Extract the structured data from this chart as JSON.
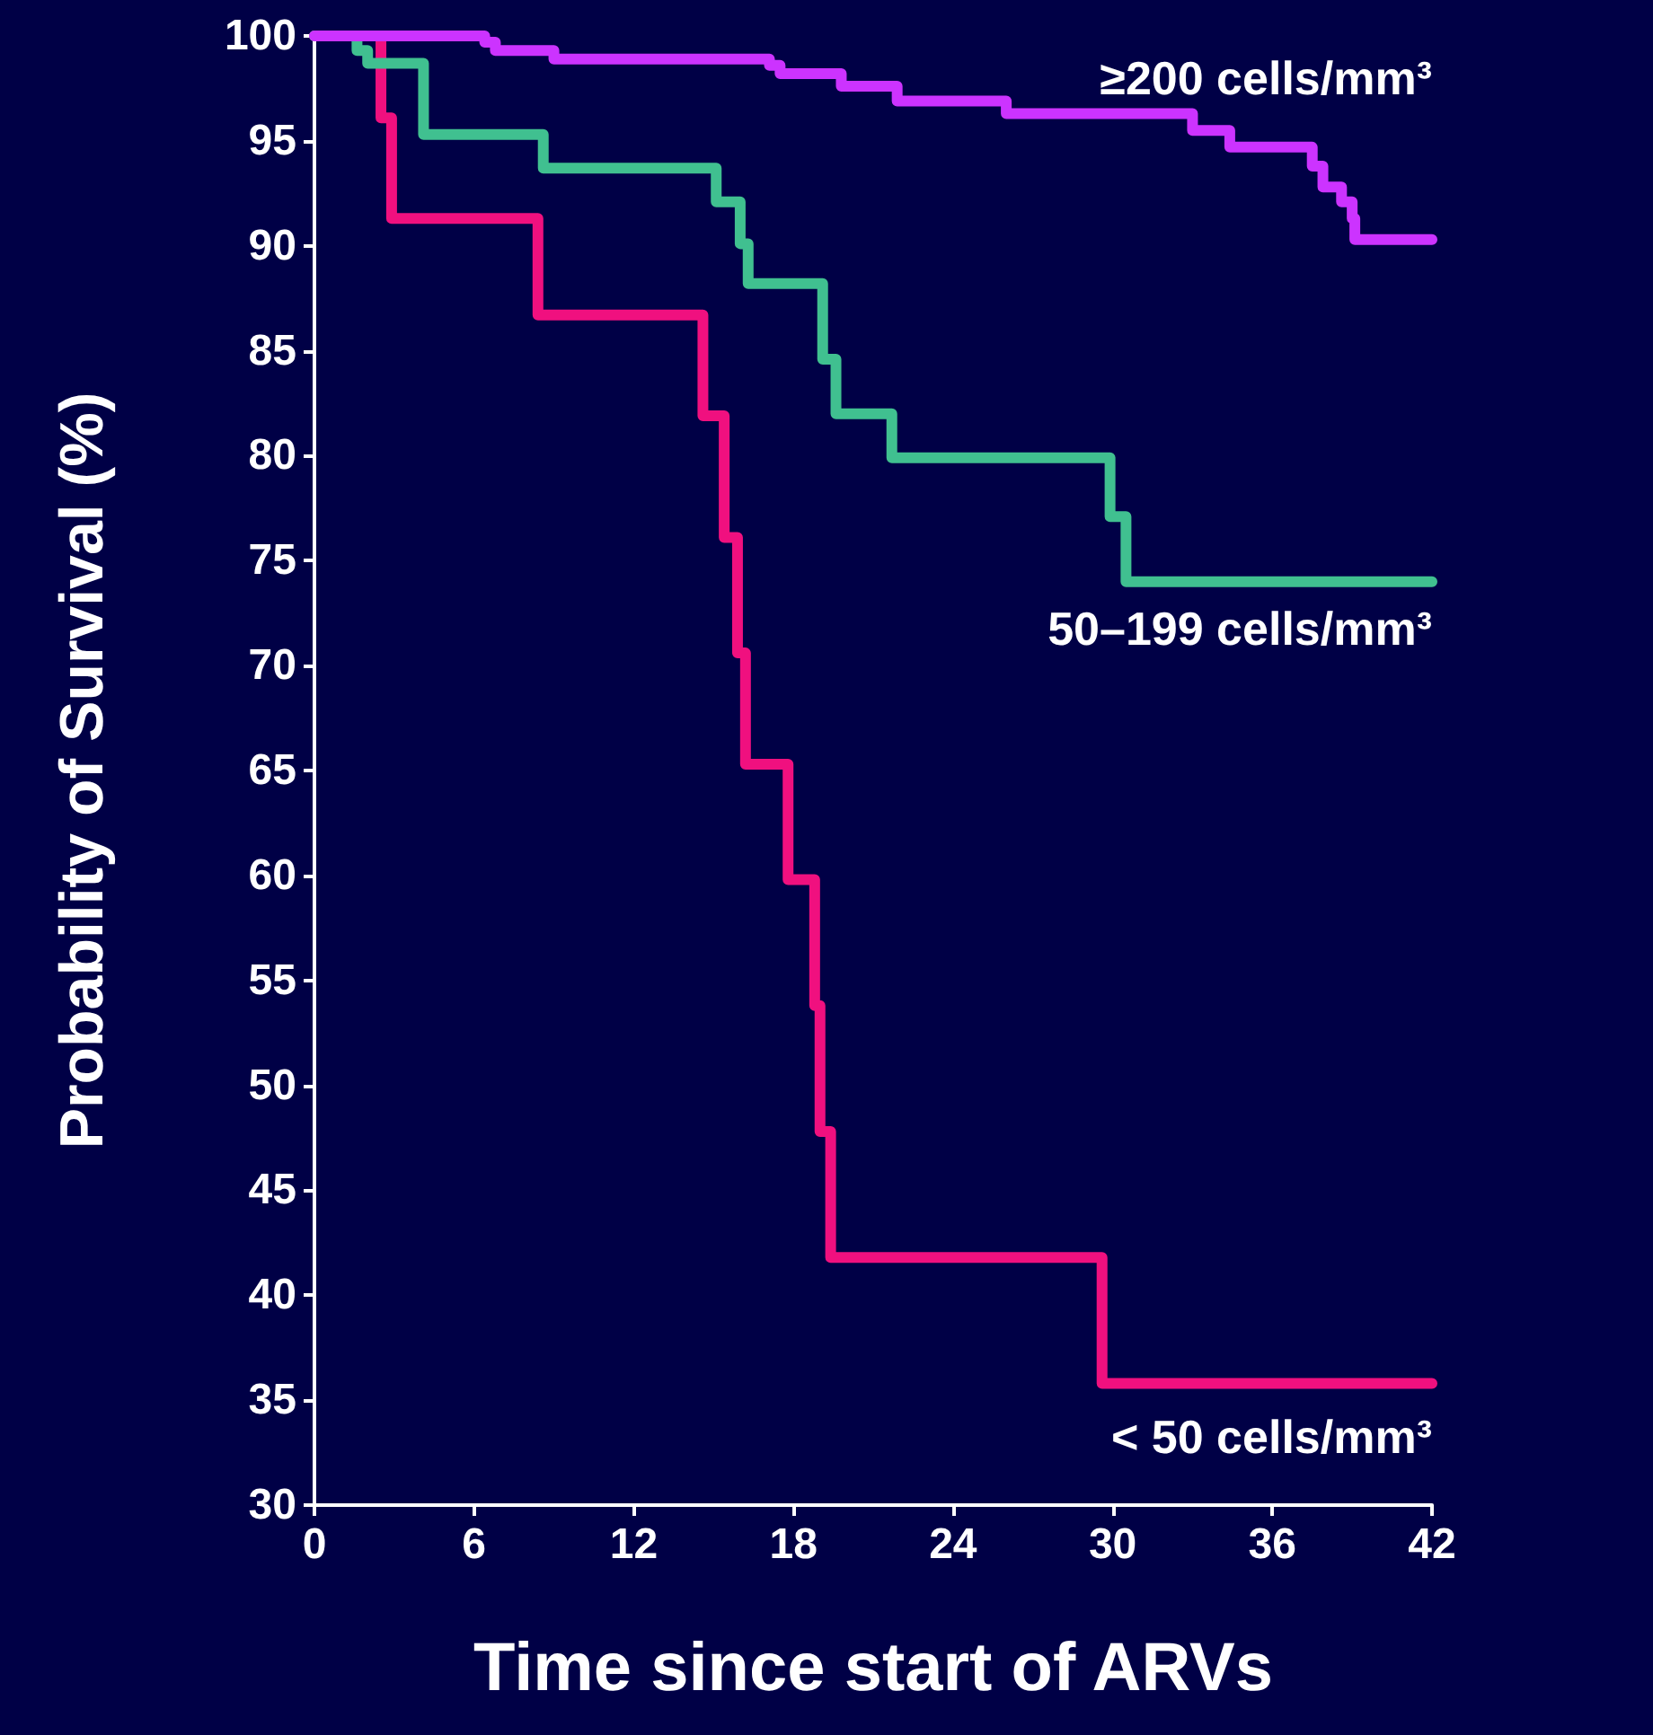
{
  "chart_data": {
    "type": "step",
    "xlabel": "Time since start of ARVs",
    "ylabel": "Probability of Survival (%)",
    "xlim": [
      0,
      42
    ],
    "xticks": [
      0,
      6,
      12,
      18,
      24,
      30,
      36,
      42
    ],
    "ylim": [
      30,
      100
    ],
    "yticks": [
      30,
      35,
      40,
      45,
      50,
      55,
      60,
      65,
      70,
      75,
      80,
      85,
      90,
      95,
      100
    ],
    "grid": false,
    "legend": false,
    "marker": "none",
    "line_style": "solid",
    "series": [
      {
        "name": "≥200 cells/mm³",
        "color": "#cc33ff",
        "x": [
          0,
          6.4,
          6.8,
          9.0,
          17.1,
          17.5,
          19.8,
          21.9,
          26.0,
          33.0,
          34.4,
          37.5,
          37.9,
          38.6,
          39.0,
          39.1,
          42
        ],
        "values": [
          100,
          99.7,
          99.3,
          98.9,
          98.6,
          98.2,
          97.6,
          96.9,
          96.3,
          95.5,
          94.7,
          93.8,
          92.8,
          92.1,
          91.3,
          90.3,
          90.3
        ]
      },
      {
        "name": "50–199 cells/mm³",
        "color": "#40c090",
        "x": [
          0,
          1.6,
          2.0,
          4.1,
          8.6,
          15.1,
          16.0,
          16.3,
          19.1,
          19.6,
          21.7,
          29.9,
          30.5,
          42
        ],
        "values": [
          100,
          99.3,
          98.7,
          95.3,
          93.7,
          92.1,
          90.1,
          88.2,
          84.6,
          82.0,
          79.9,
          77.1,
          74.0,
          74.0
        ]
      },
      {
        "name": "< 50 cells/mm³",
        "color": "#f0107f",
        "x": [
          0,
          2.5,
          2.9,
          8.4,
          14.6,
          15.4,
          15.9,
          16.2,
          17.8,
          18.8,
          19.0,
          19.4,
          29.6,
          42
        ],
        "values": [
          100,
          96.1,
          91.3,
          86.7,
          81.9,
          76.1,
          70.6,
          65.3,
          59.8,
          53.8,
          47.8,
          41.8,
          35.8,
          35.8
        ]
      }
    ]
  }
}
